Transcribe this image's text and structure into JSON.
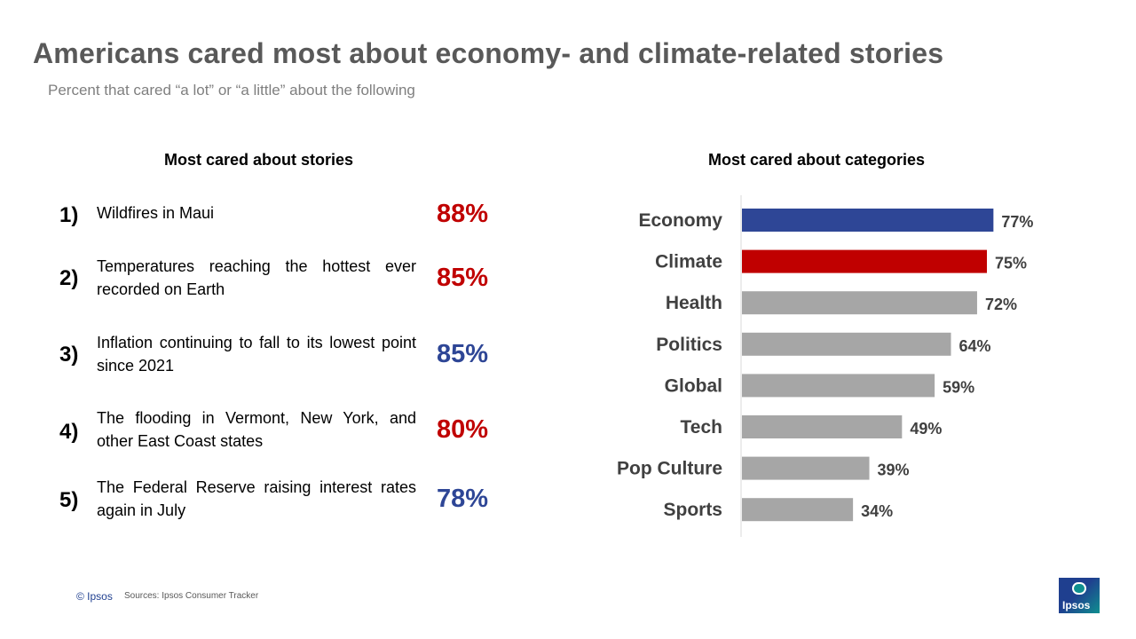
{
  "title": "Americans cared most about economy- and climate-related stories",
  "subtitle": "Percent that cared “a lot” or “a little” about the following",
  "stories_heading": "Most cared about stories",
  "categories_heading": "Most cared about categories",
  "colors": {
    "red": "#c00000",
    "blue": "#2e4696",
    "gray": "#a6a6a6"
  },
  "stories": [
    {
      "rank": "1)",
      "text": "Wildfires in Maui",
      "value": "88%",
      "color": "red"
    },
    {
      "rank": "2)",
      "text": "Temperatures reaching the hottest ever recorded on Earth",
      "value": "85%",
      "color": "red"
    },
    {
      "rank": "3)",
      "text": "Inflation continuing to fall to its lowest point since 2021",
      "value": "85%",
      "color": "blue"
    },
    {
      "rank": "4)",
      "text": "The flooding in Vermont, New York, and other East Coast states",
      "value": "80%",
      "color": "red"
    },
    {
      "rank": "5)",
      "text": "The Federal Reserve raising interest rates again in July",
      "value": "78%",
      "color": "blue"
    }
  ],
  "chart_data": {
    "type": "bar",
    "orientation": "horizontal",
    "title": "Most cared about categories",
    "categories": [
      "Economy",
      "Climate",
      "Health",
      "Politics",
      "Global",
      "Tech",
      "Pop Culture",
      "Sports"
    ],
    "values": [
      77,
      75,
      72,
      64,
      59,
      49,
      39,
      34
    ],
    "value_labels": [
      "77%",
      "75%",
      "72%",
      "64%",
      "59%",
      "49%",
      "39%",
      "34%"
    ],
    "bar_colors": [
      "#2e4696",
      "#c00000",
      "#a6a6a6",
      "#a6a6a6",
      "#a6a6a6",
      "#a6a6a6",
      "#a6a6a6",
      "#a6a6a6"
    ],
    "unit": "%",
    "xlim": [
      0,
      100
    ],
    "grid": false,
    "legend": "none"
  },
  "footer": {
    "copyright": "© Ipsos",
    "sources": "Sources: Ipsos Consumer Tracker",
    "logo_text": "Ipsos"
  }
}
